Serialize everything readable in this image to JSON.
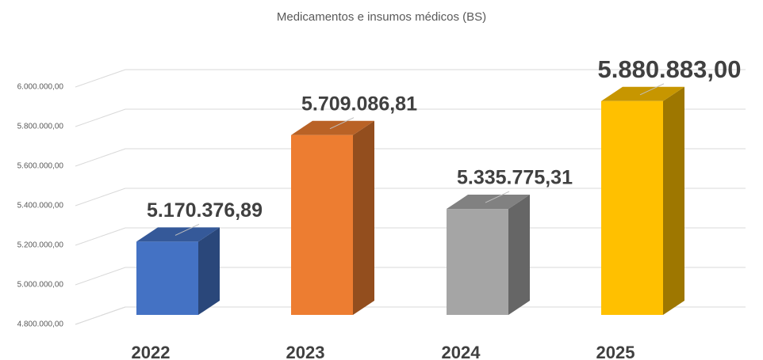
{
  "chart_data": {
    "type": "bar3d",
    "title": "Medicamentos e insumos médicos  (BS)",
    "categories": [
      "2022",
      "2023",
      "2024",
      "2025"
    ],
    "values": [
      5170376.89,
      5709086.81,
      5335775.31,
      5880883.0
    ],
    "value_labels": [
      "5.170.376,89",
      "5.709.086,81",
      "5.335.775,31",
      "5.880.883,00"
    ],
    "colors": [
      "#4472c4",
      "#ed7d31",
      "#a5a5a5",
      "#ffc000"
    ],
    "ylim": [
      4800000,
      6000000
    ],
    "yticks": [
      {
        "value": 4800000,
        "label": "4.800.000,00"
      },
      {
        "value": 5000000,
        "label": "5.000.000,00"
      },
      {
        "value": 5200000,
        "label": "5.200.000,00"
      },
      {
        "value": 5400000,
        "label": "5.400.000,00"
      },
      {
        "value": 5600000,
        "label": "5.600.000,00"
      },
      {
        "value": 5800000,
        "label": "5.800.000,00"
      },
      {
        "value": 6000000,
        "label": "6.000.000,00"
      }
    ],
    "grid": true
  }
}
